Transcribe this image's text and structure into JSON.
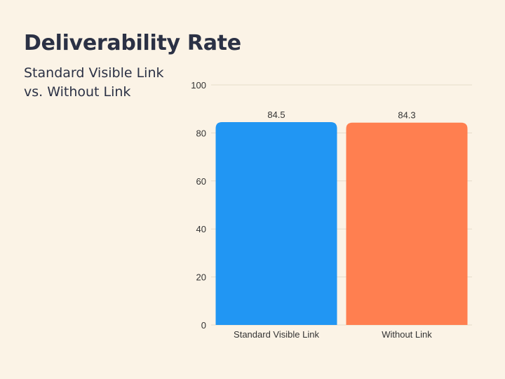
{
  "header": {
    "title": "Deliverability Rate",
    "subtitle_line1": "Standard Visible Link",
    "subtitle_line2": "vs. Without Link"
  },
  "chart_data": {
    "type": "bar",
    "title": "Deliverability Rate",
    "subtitle": "Standard Visible Link vs. Without Link",
    "categories": [
      "Standard Visible Link",
      "Without Link"
    ],
    "values": [
      84.5,
      84.3
    ],
    "value_labels": [
      "84.5",
      "84.3"
    ],
    "bar_colors": [
      "#2196f3",
      "#ff7f50"
    ],
    "xlabel": "",
    "ylabel": "",
    "ylim": [
      0,
      100
    ],
    "yticks": [
      0,
      20,
      40,
      60,
      80,
      100
    ],
    "grid": true,
    "legend": "none"
  }
}
